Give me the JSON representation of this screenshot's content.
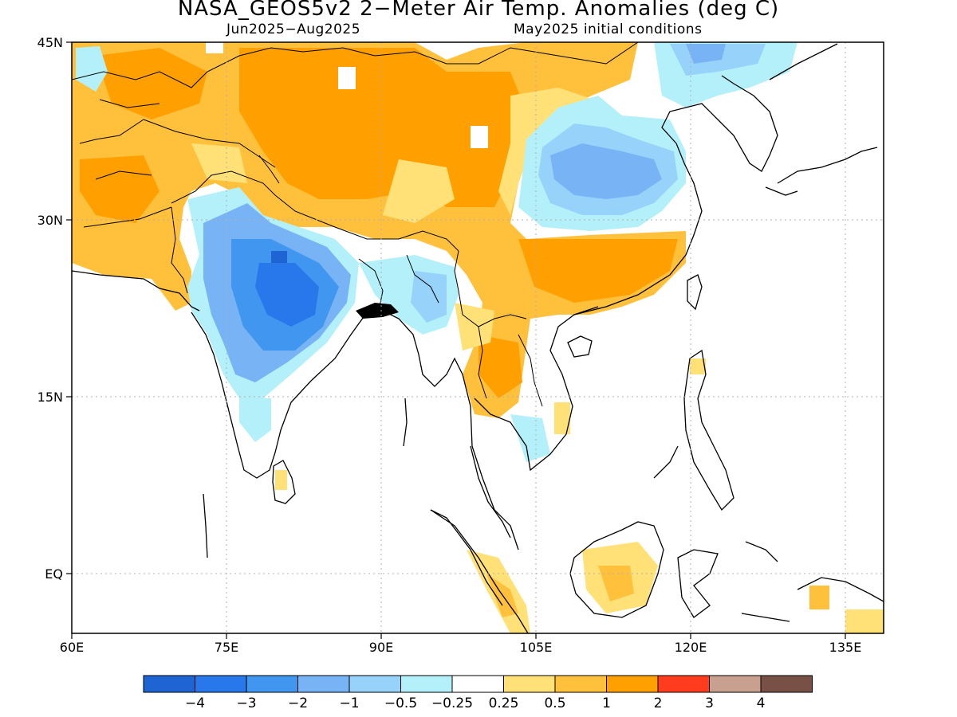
{
  "title": "NASA_GEOS5v2 2−Meter Air Temp. Anomalies (deg C)",
  "subtitle_left": "Jun2025−Aug2025",
  "subtitle_right": "May2025 initial conditions",
  "map": {
    "lon_range": [
      60,
      140
    ],
    "lat_range": [
      -5,
      45
    ],
    "x_ticks": [
      "60E",
      "75E",
      "90E",
      "105E",
      "120E",
      "135E"
    ],
    "y_ticks": [
      "45N",
      "30N",
      "15N",
      "EQ"
    ],
    "grid": "dotted"
  },
  "colorbar": {
    "colors": [
      "#1e64d2",
      "#2878eb",
      "#4196f0",
      "#78b4f5",
      "#96d2fa",
      "#b4f0fa",
      "#ffffff",
      "#ffe178",
      "#ffc03c",
      "#ffa000",
      "#ff3c1e",
      "#c8a090",
      "#785046"
    ],
    "labels": [
      "−4",
      "−3",
      "−2",
      "−1",
      "−0.5",
      "−0.25",
      "0.25",
      "0.5",
      "1",
      "2",
      "3",
      "4"
    ]
  }
}
